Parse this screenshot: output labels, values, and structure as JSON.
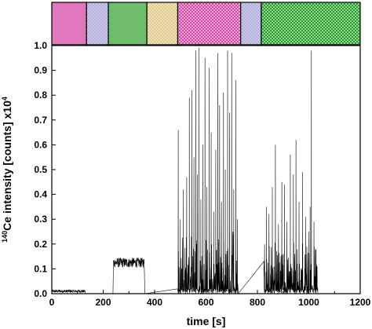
{
  "chart_data": {
    "type": "line",
    "xlabel": "time [s]",
    "ylabel": {
      "superscript": "140",
      "main": "Ce intensity [counts] x10",
      "exponent": "4"
    },
    "xlim": [
      0,
      1200
    ],
    "ylim": [
      0,
      1.0
    ],
    "x_ticks": [
      "0",
      "200",
      "400",
      "600",
      "800",
      "1000",
      "1200"
    ],
    "y_ticks": [
      "0.0",
      "0.1",
      "0.2",
      "0.3",
      "0.4",
      "0.5",
      "0.6",
      "0.7",
      "0.8",
      "0.9",
      "1.0"
    ],
    "grid": false,
    "line_color": "#000000",
    "segments": [
      {
        "kind": "noise",
        "x": [
          0,
          130
        ],
        "base": 0.01,
        "amp": 0.006,
        "peaks": []
      },
      {
        "kind": "plateau",
        "x": [
          240,
          360
        ],
        "base": 0.125,
        "amp": 0.02,
        "peaks": []
      },
      {
        "kind": "spikes",
        "x": [
          490,
          725
        ],
        "base": 0.02,
        "amp": 0.1,
        "peaks": [
          [
            492,
            0.66
          ],
          [
            500,
            0.3
          ],
          [
            512,
            0.42
          ],
          [
            525,
            0.47
          ],
          [
            535,
            0.79
          ],
          [
            545,
            0.82
          ],
          [
            553,
            0.55
          ],
          [
            560,
            0.98
          ],
          [
            566,
            0.48
          ],
          [
            572,
            0.99
          ],
          [
            580,
            0.38
          ],
          [
            588,
            0.6
          ],
          [
            596,
            0.95
          ],
          [
            603,
            0.43
          ],
          [
            612,
            0.91
          ],
          [
            620,
            0.65
          ],
          [
            630,
            0.33
          ],
          [
            638,
            0.58
          ],
          [
            646,
            0.97
          ],
          [
            653,
            0.76
          ],
          [
            660,
            0.37
          ],
          [
            668,
            0.81
          ],
          [
            675,
            0.5
          ],
          [
            684,
            0.98
          ],
          [
            692,
            0.73
          ],
          [
            700,
            0.97
          ],
          [
            708,
            0.42
          ],
          [
            716,
            0.86
          ],
          [
            722,
            0.3
          ]
        ]
      },
      {
        "kind": "spikes",
        "x": [
          825,
          1035
        ],
        "base": 0.02,
        "amp": 0.08,
        "peaks": [
          [
            826,
            0.11
          ],
          [
            835,
            0.35
          ],
          [
            845,
            0.32
          ],
          [
            858,
            0.43
          ],
          [
            870,
            0.6
          ],
          [
            882,
            0.28
          ],
          [
            895,
            0.45
          ],
          [
            905,
            0.44
          ],
          [
            915,
            0.29
          ],
          [
            928,
            0.56
          ],
          [
            940,
            0.48
          ],
          [
            950,
            0.62
          ],
          [
            962,
            0.37
          ],
          [
            975,
            0.49
          ],
          [
            988,
            0.31
          ],
          [
            1000,
            0.25
          ],
          [
            1005,
            0.35
          ],
          [
            1010,
            0.98
          ],
          [
            1020,
            0.29
          ],
          [
            1028,
            0.18
          ]
        ]
      }
    ],
    "top_bands": [
      {
        "x": [
          0,
          135
        ],
        "color": "#e377bd",
        "pattern": "solid"
      },
      {
        "x": [
          135,
          220
        ],
        "color": "#c9c6ee",
        "pattern": "dots"
      },
      {
        "x": [
          220,
          370
        ],
        "color": "#6dbd6d",
        "pattern": "solid"
      },
      {
        "x": [
          370,
          490
        ],
        "color": "#f2e1ad",
        "pattern": "dots"
      },
      {
        "x": [
          490,
          735
        ],
        "color": "#d84aa6",
        "pattern": "checker"
      },
      {
        "x": [
          735,
          815
        ],
        "color": "#c9c6ee",
        "pattern": "dots"
      },
      {
        "x": [
          815,
          1200
        ],
        "color": "#27a02a",
        "pattern": "checker"
      }
    ]
  }
}
